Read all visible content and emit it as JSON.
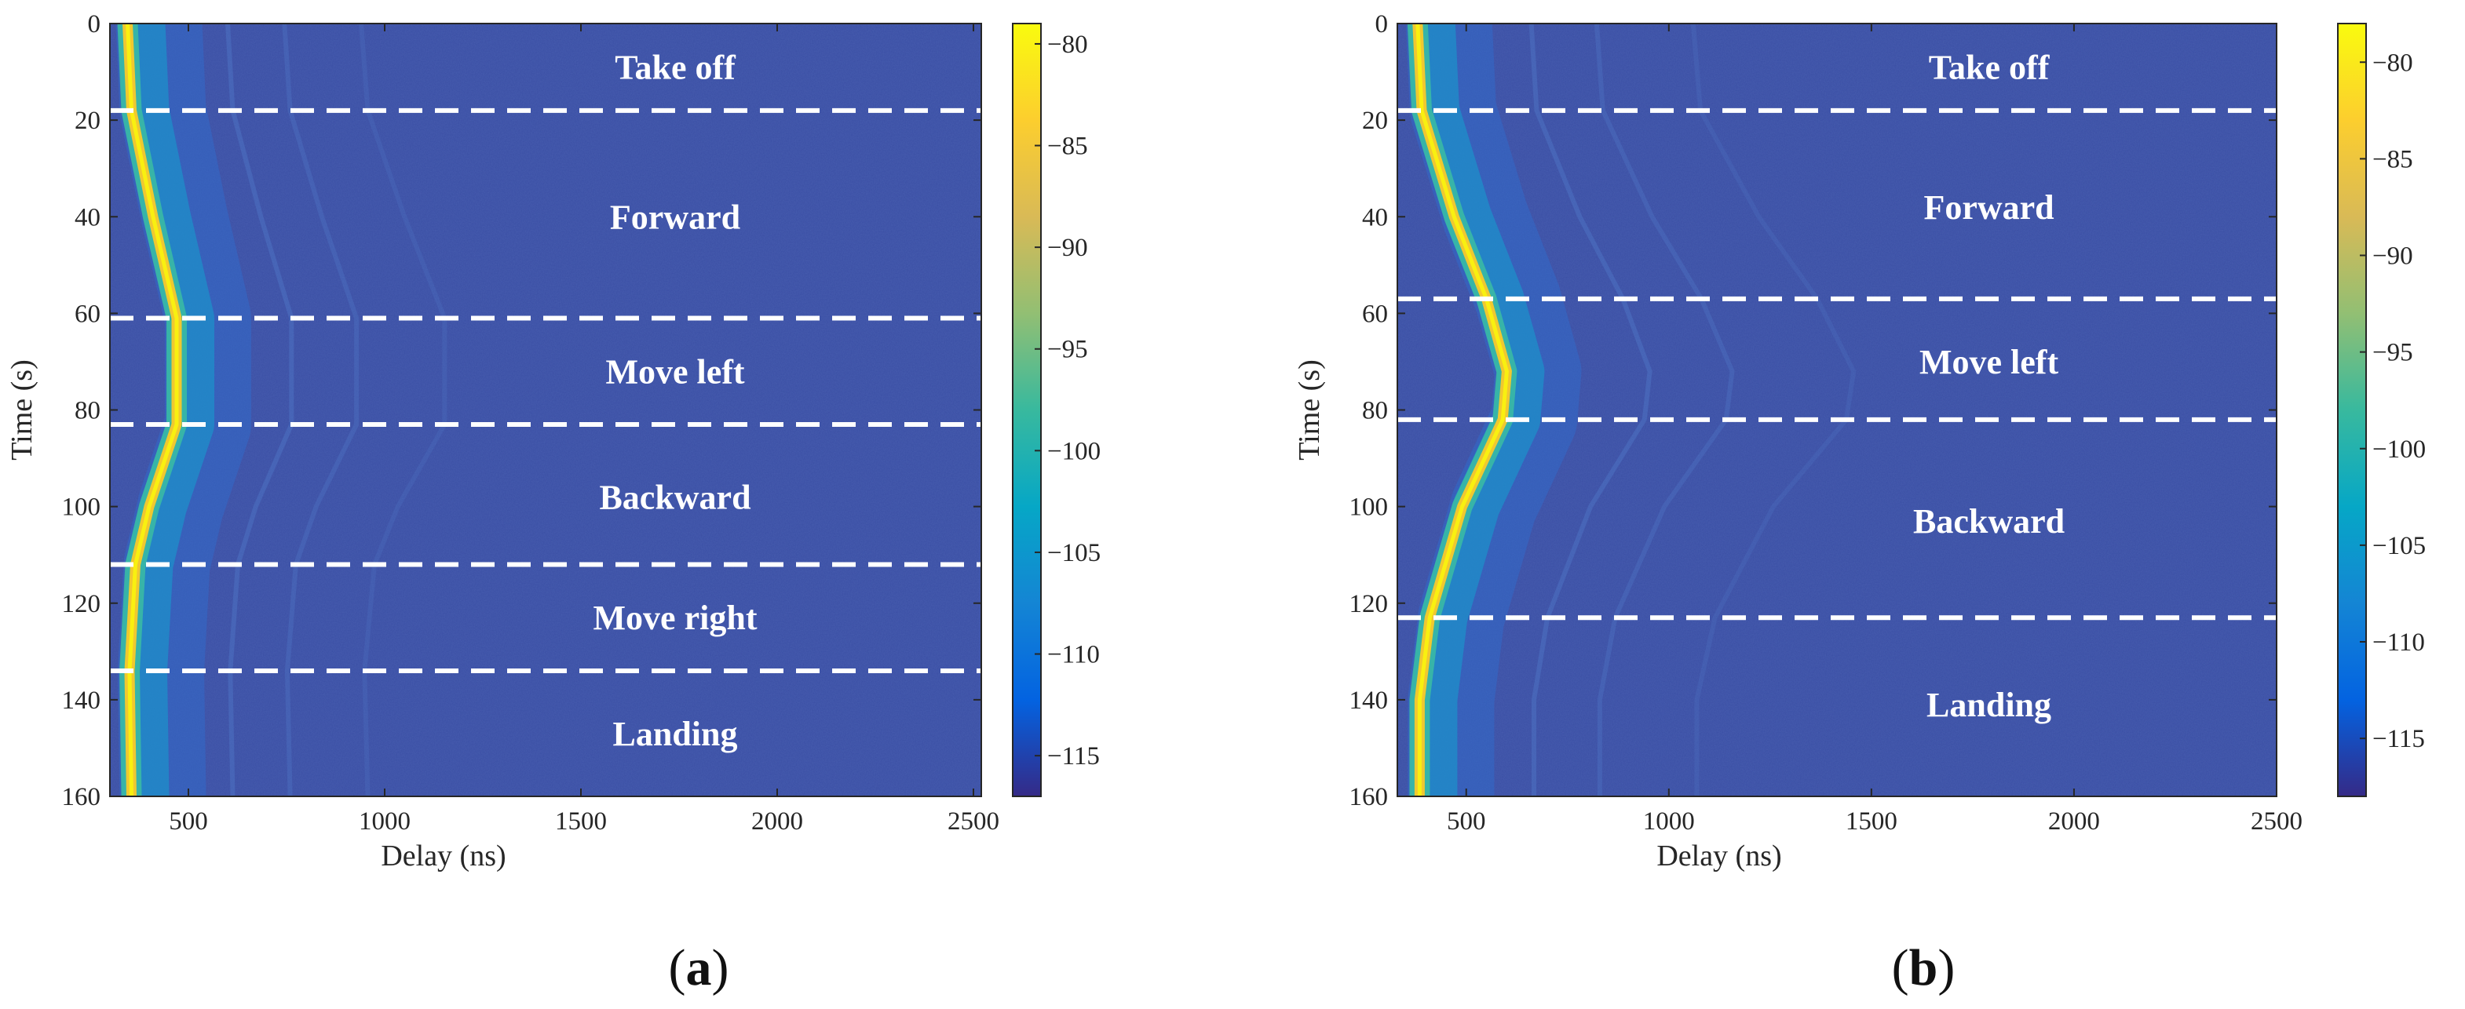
{
  "chart_data": [
    {
      "type": "heatmap",
      "panel_label": "a",
      "xlabel": "Delay (ns)",
      "ylabel": "Time (s)",
      "xlim": [
        300,
        2520
      ],
      "ylim": [
        0,
        160
      ],
      "xticks": [
        500,
        1000,
        1500,
        2000,
        2500
      ],
      "yticks": [
        0,
        20,
        40,
        60,
        80,
        100,
        120,
        140,
        160
      ],
      "colorbar": {
        "min": -117,
        "max": -79,
        "ticks": [
          -80,
          -85,
          -90,
          -95,
          -100,
          -105,
          -110,
          -115
        ]
      },
      "phases": [
        {
          "name": "Take off",
          "label_time": 9
        },
        {
          "name": "Forward",
          "label_time": 40
        },
        {
          "name": "Move left",
          "label_time": 72
        },
        {
          "name": "Backward",
          "label_time": 98
        },
        {
          "name": "Move right",
          "label_time": 123
        },
        {
          "name": "Landing",
          "label_time": 147
        }
      ],
      "phase_boundaries": [
        18,
        61,
        83,
        112,
        134
      ],
      "main_path": [
        {
          "t": 0,
          "delay": 345
        },
        {
          "t": 18,
          "delay": 355
        },
        {
          "t": 40,
          "delay": 410
        },
        {
          "t": 61,
          "delay": 470
        },
        {
          "t": 83,
          "delay": 470
        },
        {
          "t": 100,
          "delay": 400
        },
        {
          "t": 112,
          "delay": 365
        },
        {
          "t": 134,
          "delay": 350
        },
        {
          "t": 160,
          "delay": 355
        }
      ]
    },
    {
      "type": "heatmap",
      "panel_label": "b",
      "xlabel": "Delay (ns)",
      "ylabel": "Time (s)",
      "xlim": [
        330,
        2500
      ],
      "ylim": [
        0,
        160
      ],
      "xticks": [
        500,
        1000,
        1500,
        2000,
        2500
      ],
      "yticks": [
        0,
        20,
        40,
        60,
        80,
        100,
        120,
        140,
        160
      ],
      "colorbar": {
        "min": -118,
        "max": -78,
        "ticks": [
          -80,
          -85,
          -90,
          -95,
          -100,
          -105,
          -110,
          -115
        ]
      },
      "phases": [
        {
          "name": "Take off",
          "label_time": 9
        },
        {
          "name": "Forward",
          "label_time": 38
        },
        {
          "name": "Move left",
          "label_time": 70
        },
        {
          "name": "Backward",
          "label_time": 103
        },
        {
          "name": "Landing",
          "label_time": 141
        }
      ],
      "phase_boundaries": [
        18,
        57,
        82,
        123
      ],
      "main_path": [
        {
          "t": 0,
          "delay": 380
        },
        {
          "t": 18,
          "delay": 390
        },
        {
          "t": 40,
          "delay": 470
        },
        {
          "t": 57,
          "delay": 550
        },
        {
          "t": 72,
          "delay": 600
        },
        {
          "t": 82,
          "delay": 590
        },
        {
          "t": 100,
          "delay": 490
        },
        {
          "t": 123,
          "delay": 410
        },
        {
          "t": 140,
          "delay": 385
        },
        {
          "t": 160,
          "delay": 385
        }
      ]
    }
  ],
  "colors": {
    "background_field": "#3a4ea4",
    "boundary_line": "#ffffff",
    "parula": [
      "#352a87",
      "#0363e1",
      "#1485d4",
      "#06a7c6",
      "#38b99e",
      "#92bf73",
      "#d9ba56",
      "#fcce2e",
      "#f9fb0e"
    ]
  }
}
